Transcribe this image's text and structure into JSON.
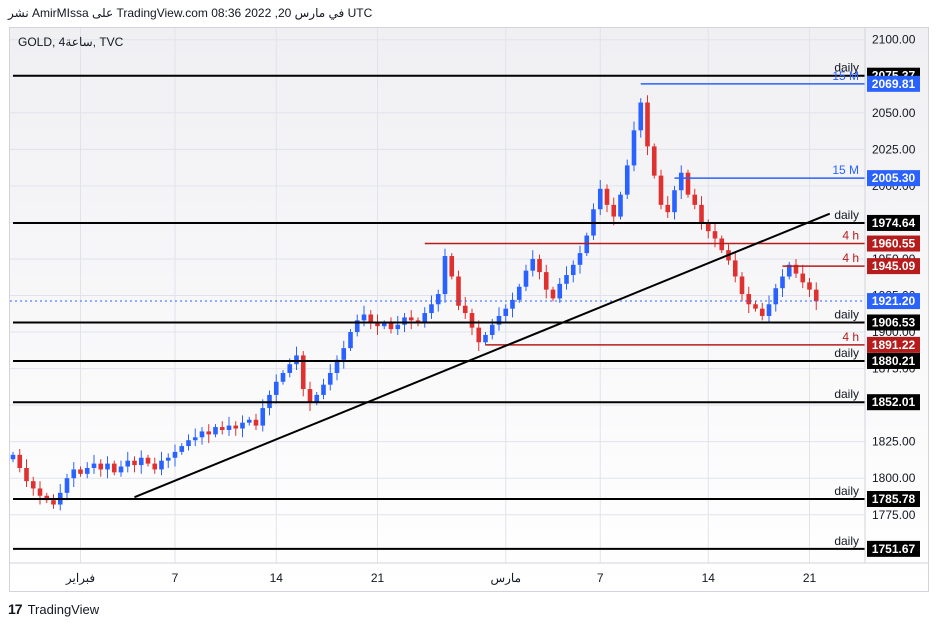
{
  "header": {
    "publish_line": "نشر AmirMIssa على TradingView.com في مارس 20, 2022 08:36 UTC"
  },
  "footer": {
    "brand": "TradingView",
    "logo_mark": "17"
  },
  "colors": {
    "up": "#2962ff",
    "down": "#e03131",
    "support_line": "#000000",
    "resistance_4h": "#b71c1c",
    "line_15m": "#2962ff",
    "last_price": "#2962ff",
    "grid": "#e0e3eb",
    "bg_top": "#f0f0f3",
    "bg_bottom": "#ffffff"
  },
  "chart_data": {
    "type": "candlestick",
    "symbol_label": "GOLD, 4ساعة, TVC",
    "y_axis": {
      "min": 1742,
      "max": 2108,
      "ticks": [
        1775,
        1800,
        1825,
        1850,
        1875,
        1900,
        1925,
        1950,
        1975,
        2000,
        2025,
        2050,
        2075,
        2100
      ],
      "tick_labels": [
        "1775.00",
        "1800.00",
        "1825.00",
        "1850.00",
        "1875.00",
        "1900.00",
        "1925.00",
        "1950.00",
        "1975.00",
        "2000.00",
        "2025.00",
        "2050.00",
        "2075.00",
        "2100.00"
      ]
    },
    "x_axis": {
      "bar_count": 120,
      "labels": [
        {
          "bar": 10,
          "text": "فبراير"
        },
        {
          "bar": 24,
          "text": "7"
        },
        {
          "bar": 39,
          "text": "14"
        },
        {
          "bar": 54,
          "text": "21"
        },
        {
          "bar": 73,
          "text": "مارس"
        },
        {
          "bar": 87,
          "text": "7"
        },
        {
          "bar": 103,
          "text": "14"
        },
        {
          "bar": 118,
          "text": "21"
        }
      ]
    },
    "grid": true,
    "closes": [
      1816,
      1807,
      1798,
      1793,
      1788,
      1785,
      1782,
      1790,
      1800,
      1806,
      1803,
      1807,
      1810,
      1806,
      1810,
      1804,
      1808,
      1812,
      1809,
      1814,
      1810,
      1806,
      1812,
      1814,
      1818,
      1822,
      1826,
      1828,
      1832,
      1830,
      1835,
      1833,
      1836,
      1834,
      1838,
      1840,
      1836,
      1848,
      1857,
      1866,
      1872,
      1878,
      1884,
      1861,
      1852,
      1857,
      1864,
      1872,
      1881,
      1889,
      1900,
      1908,
      1912,
      1907,
      1904,
      1906,
      1902,
      1905,
      1910,
      1908,
      1906,
      1913,
      1919,
      1926,
      1952,
      1938,
      1918,
      1913,
      1903,
      1893,
      1898,
      1905,
      1911,
      1916,
      1922,
      1931,
      1942,
      1950,
      1941,
      1929,
      1923,
      1933,
      1939,
      1946,
      1954,
      1966,
      1984,
      1998,
      1987,
      1979,
      1994,
      2014,
      2038,
      2057,
      2027,
      2007,
      1987,
      1982,
      1997,
      2009,
      1994,
      1987,
      1974,
      1969,
      1964,
      1956,
      1949,
      1938,
      1926,
      1919,
      1916,
      1911,
      1919,
      1930,
      1938,
      1946,
      1940,
      1934,
      1929,
      1921
    ],
    "price_labels": [
      {
        "value": 2075.37,
        "label": "2075.37",
        "color": "#000000"
      },
      {
        "value": 2069.81,
        "label": "2069.81",
        "color": "#2962ff"
      },
      {
        "value": 2005.3,
        "label": "2005.30",
        "color": "#2962ff"
      },
      {
        "value": 1974.64,
        "label": "1974.64",
        "color": "#000000"
      },
      {
        "value": 1960.55,
        "label": "1960.55",
        "color": "#b71c1c"
      },
      {
        "value": 1945.09,
        "label": "1945.09",
        "color": "#b71c1c"
      },
      {
        "value": 1921.2,
        "label": "1921.20",
        "color": "#2962ff"
      },
      {
        "value": 1906.53,
        "label": "1906.53",
        "color": "#000000"
      },
      {
        "value": 1891.22,
        "label": "1891.22",
        "color": "#b71c1c"
      },
      {
        "value": 1880.21,
        "label": "1880.21",
        "color": "#000000"
      },
      {
        "value": 1852.01,
        "label": "1852.01",
        "color": "#000000"
      },
      {
        "value": 1785.78,
        "label": "1785.78",
        "color": "#000000"
      },
      {
        "value": 1751.67,
        "label": "1751.67",
        "color": "#000000"
      }
    ],
    "horizontal_levels": [
      {
        "value": 2075.37,
        "from_bar": 0,
        "label": "daily",
        "color": "#000000"
      },
      {
        "value": 2069.81,
        "from_bar": 93,
        "label": "15 M",
        "color": "#2962ff"
      },
      {
        "value": 2005.3,
        "from_bar": 98,
        "label": "15 M",
        "color": "#2962ff"
      },
      {
        "value": 1974.64,
        "from_bar": 0,
        "label": "daily",
        "color": "#000000"
      },
      {
        "value": 1960.55,
        "from_bar": 61,
        "label": "4 h",
        "color": "#b71c1c"
      },
      {
        "value": 1945.09,
        "from_bar": 114,
        "label": "4 h",
        "color": "#b71c1c"
      },
      {
        "value": 1906.53,
        "from_bar": 0,
        "label": "daily",
        "color": "#000000"
      },
      {
        "value": 1891.22,
        "from_bar": 70,
        "label": "4 h",
        "color": "#b71c1c"
      },
      {
        "value": 1880.21,
        "from_bar": 0,
        "label": "daily",
        "color": "#000000"
      },
      {
        "value": 1852.01,
        "from_bar": 0,
        "label": "daily",
        "color": "#000000"
      },
      {
        "value": 1785.78,
        "from_bar": 0,
        "label": "daily",
        "color": "#000000"
      },
      {
        "value": 1751.67,
        "from_bar": 0,
        "label": "daily",
        "color": "#000000"
      }
    ],
    "trendline": {
      "from_bar": 18,
      "from_value": 1787,
      "to_bar": 121,
      "to_value": 1981,
      "color": "#000000"
    },
    "last_price": 1921.2
  }
}
